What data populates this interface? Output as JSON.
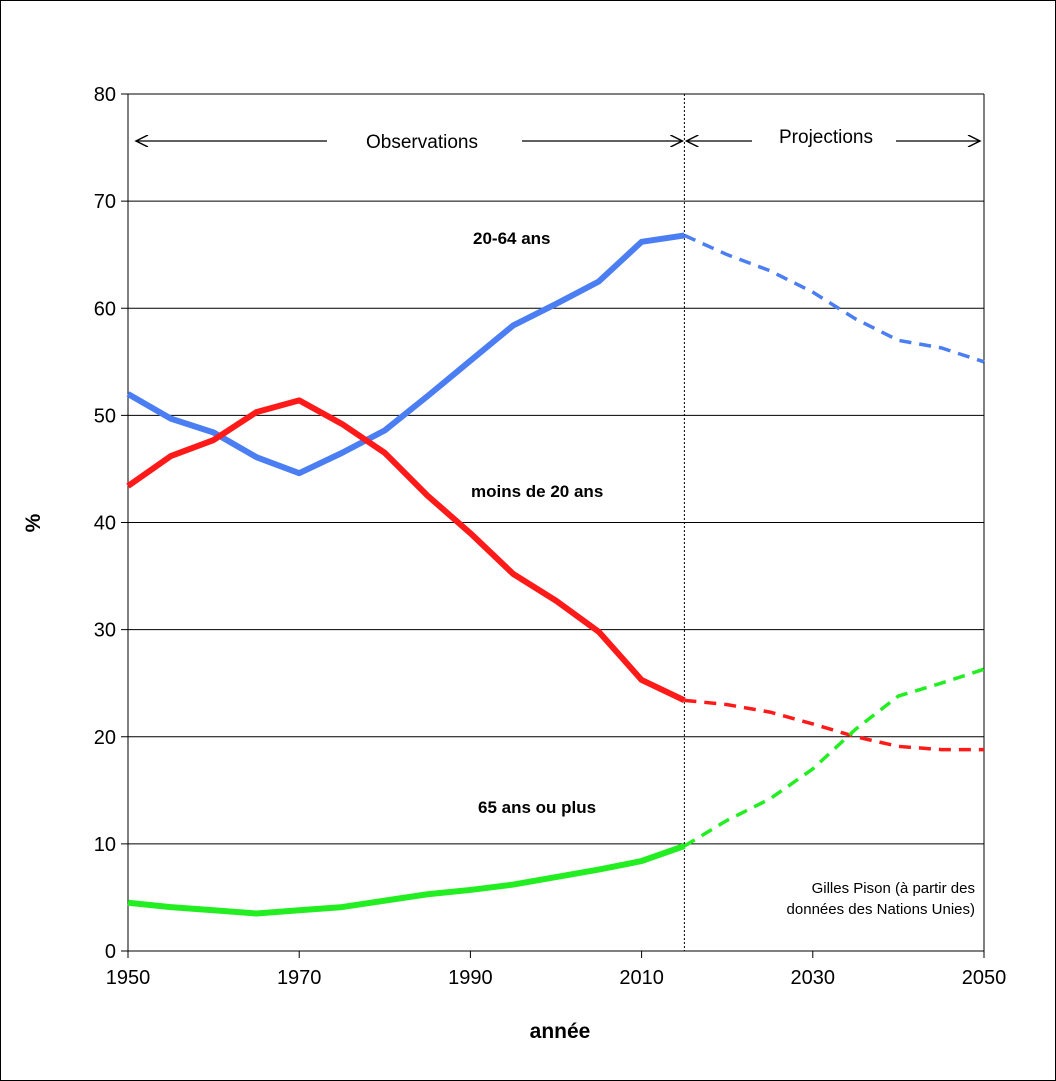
{
  "chart_data": {
    "type": "line",
    "xlabel": "année",
    "ylabel": "%",
    "xlim": [
      1950,
      2050
    ],
    "ylim": [
      0,
      80
    ],
    "xticks": [
      "1950",
      "1970",
      "1990",
      "2010",
      "2030",
      "2050"
    ],
    "yticks": [
      "0",
      "10",
      "20",
      "30",
      "40",
      "50",
      "60",
      "70",
      "80"
    ],
    "grid": "horizontal",
    "observations_label": "Observations",
    "projections_label": "Projections",
    "divider_year": 2015,
    "credit_lines": [
      "Gilles Pison (à partir des",
      "données des Nations Unies)"
    ],
    "series": [
      {
        "name": "20-64 ans",
        "color": "#4a7ef2",
        "x": [
          1950,
          1955,
          1960,
          1965,
          1970,
          1975,
          1980,
          1985,
          1990,
          1995,
          2000,
          2005,
          2010,
          2015,
          2020,
          2025,
          2030,
          2035,
          2040,
          2045,
          2050
        ],
        "values": [
          52.0,
          49.7,
          48.4,
          46.1,
          44.6,
          46.5,
          48.6,
          51.8,
          55.1,
          58.4,
          60.4,
          62.5,
          66.2,
          66.8,
          65.0,
          63.5,
          61.5,
          59.0,
          57.0,
          56.3,
          55.0
        ]
      },
      {
        "name": "moins de 20 ans",
        "color": "#ff1a1a",
        "x": [
          1950,
          1955,
          1960,
          1965,
          1970,
          1975,
          1980,
          1985,
          1990,
          1995,
          2000,
          2005,
          2010,
          2015,
          2020,
          2025,
          2030,
          2035,
          2040,
          2045,
          2050
        ],
        "values": [
          43.4,
          46.2,
          47.7,
          50.3,
          51.4,
          49.2,
          46.5,
          42.5,
          39.0,
          35.2,
          32.7,
          29.8,
          25.3,
          23.4,
          23.0,
          22.3,
          21.2,
          20.0,
          19.1,
          18.8,
          18.8
        ]
      },
      {
        "name": "65 ans ou plus",
        "color": "#22ee22",
        "x": [
          1950,
          1955,
          1960,
          1965,
          1970,
          1975,
          1980,
          1985,
          1990,
          1995,
          2000,
          2005,
          2010,
          2015,
          2020,
          2025,
          2030,
          2035,
          2040,
          2045,
          2050
        ],
        "values": [
          4.5,
          4.1,
          3.8,
          3.5,
          3.8,
          4.1,
          4.7,
          5.3,
          5.7,
          6.2,
          6.9,
          7.6,
          8.4,
          9.8,
          12.2,
          14.2,
          17.0,
          20.7,
          23.8,
          25.0,
          26.3
        ]
      }
    ]
  }
}
